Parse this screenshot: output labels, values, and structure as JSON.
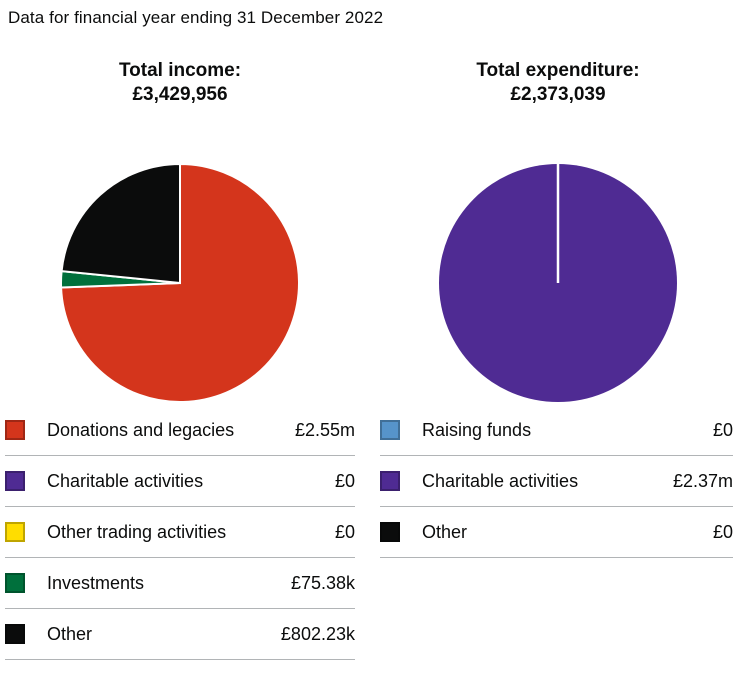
{
  "page": {
    "title": "Data for financial year ending 31 December 2022"
  },
  "palette": {
    "text": "#0b0c0c",
    "divider": "#b1b4b6",
    "pie_stroke": "#ffffff",
    "background": "#ffffff"
  },
  "chart_data": [
    {
      "type": "pie",
      "name": "total-income",
      "title": "Total income:",
      "total_label": "£3,429,956",
      "legend_position": "bottom",
      "start_angle_deg": 0,
      "direction": "clockwise",
      "slices": [
        {
          "label": "Donations and legacies",
          "value": 2550000,
          "display": "£2.55m",
          "color": "#d4351c"
        },
        {
          "label": "Charitable activities",
          "value": 0,
          "display": "£0",
          "color": "#4f2b93"
        },
        {
          "label": "Other trading activities",
          "value": 0,
          "display": "£0",
          "color": "#ffdd00"
        },
        {
          "label": "Investments",
          "value": 75380,
          "display": "£75.38k",
          "color": "#00703c"
        },
        {
          "label": "Other",
          "value": 802230,
          "display": "£802.23k",
          "color": "#0b0c0c"
        }
      ]
    },
    {
      "type": "pie",
      "name": "total-expenditure",
      "title": "Total expenditure:",
      "total_label": "£2,373,039",
      "legend_position": "bottom",
      "start_angle_deg": 0,
      "direction": "clockwise",
      "slices": [
        {
          "label": "Raising funds",
          "value": 0,
          "display": "£0",
          "color": "#5694ca"
        },
        {
          "label": "Charitable activities",
          "value": 2370000,
          "display": "£2.37m",
          "color": "#4f2b93"
        },
        {
          "label": "Other",
          "value": 0,
          "display": "£0",
          "color": "#0b0c0c"
        }
      ]
    }
  ]
}
